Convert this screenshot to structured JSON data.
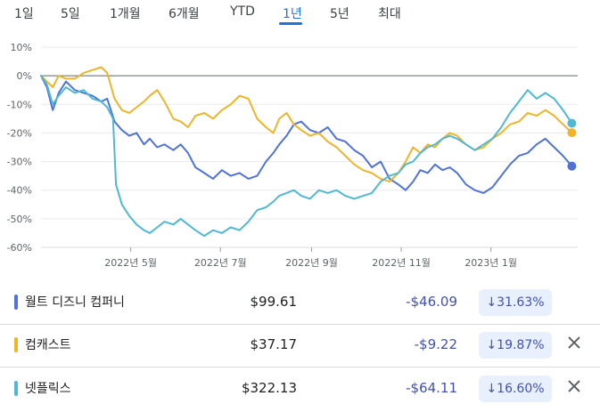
{
  "tabs": [
    {
      "label": "1일"
    },
    {
      "label": "5일"
    },
    {
      "label": "1개월"
    },
    {
      "label": "6개월"
    },
    {
      "label": "YTD"
    },
    {
      "label": "1년",
      "active": true
    },
    {
      "label": "5년"
    },
    {
      "label": "최대"
    }
  ],
  "chart_data": {
    "type": "line",
    "yticks": [
      "10%",
      "0%",
      "-10%",
      "-20%",
      "-30%",
      "-40%",
      "-50%",
      "-60%"
    ],
    "ylim": [
      -60,
      10
    ],
    "xticks": [
      {
        "label": "2022년 5월",
        "x": "2022-05-01"
      },
      {
        "label": "2022년 7월",
        "x": "2022-07-01"
      },
      {
        "label": "2022년 9월",
        "x": "2022-09-01"
      },
      {
        "label": "2022년 11월",
        "x": "2022-11-01"
      },
      {
        "label": "2023년 1월",
        "x": "2023-01-01"
      }
    ],
    "x_start": "2022-03-01",
    "x_end": "2023-03-01",
    "grid": true,
    "series": [
      {
        "name": "월트 디즈니 컴퍼니",
        "color": "#4f73d9",
        "points": [
          [
            "2022-03-01",
            0
          ],
          [
            "2022-03-05",
            -4
          ],
          [
            "2022-03-09",
            -12
          ],
          [
            "2022-03-13",
            -6
          ],
          [
            "2022-03-18",
            -2
          ],
          [
            "2022-03-24",
            -5
          ],
          [
            "2022-03-30",
            -6
          ],
          [
            "2022-04-05",
            -7
          ],
          [
            "2022-04-11",
            -9
          ],
          [
            "2022-04-15",
            -8
          ],
          [
            "2022-04-20",
            -16
          ],
          [
            "2022-04-25",
            -19
          ],
          [
            "2022-04-30",
            -21
          ],
          [
            "2022-05-05",
            -20
          ],
          [
            "2022-05-10",
            -24
          ],
          [
            "2022-05-14",
            -22
          ],
          [
            "2022-05-19",
            -25
          ],
          [
            "2022-05-24",
            -24
          ],
          [
            "2022-05-30",
            -26
          ],
          [
            "2022-06-04",
            -24
          ],
          [
            "2022-06-09",
            -27
          ],
          [
            "2022-06-14",
            -32
          ],
          [
            "2022-06-20",
            -34
          ],
          [
            "2022-06-26",
            -36
          ],
          [
            "2022-07-02",
            -33
          ],
          [
            "2022-07-08",
            -35
          ],
          [
            "2022-07-14",
            -34
          ],
          [
            "2022-07-20",
            -36
          ],
          [
            "2022-07-26",
            -35
          ],
          [
            "2022-08-01",
            -30
          ],
          [
            "2022-08-06",
            -27
          ],
          [
            "2022-08-10",
            -24
          ],
          [
            "2022-08-15",
            -21
          ],
          [
            "2022-08-20",
            -17
          ],
          [
            "2022-08-25",
            -16
          ],
          [
            "2022-08-31",
            -19
          ],
          [
            "2022-09-06",
            -20
          ],
          [
            "2022-09-12",
            -18
          ],
          [
            "2022-09-18",
            -22
          ],
          [
            "2022-09-24",
            -23
          ],
          [
            "2022-09-30",
            -26
          ],
          [
            "2022-10-06",
            -28
          ],
          [
            "2022-10-12",
            -32
          ],
          [
            "2022-10-18",
            -30
          ],
          [
            "2022-10-24",
            -36
          ],
          [
            "2022-10-30",
            -38
          ],
          [
            "2022-11-04",
            -40
          ],
          [
            "2022-11-09",
            -37
          ],
          [
            "2022-11-14",
            -33
          ],
          [
            "2022-11-19",
            -34
          ],
          [
            "2022-11-24",
            -31
          ],
          [
            "2022-11-29",
            -33
          ],
          [
            "2022-12-04",
            -32
          ],
          [
            "2022-12-09",
            -34
          ],
          [
            "2022-12-15",
            -38
          ],
          [
            "2022-12-21",
            -40
          ],
          [
            "2022-12-27",
            -41
          ],
          [
            "2023-01-02",
            -39
          ],
          [
            "2023-01-08",
            -35
          ],
          [
            "2023-01-14",
            -31
          ],
          [
            "2023-01-20",
            -28
          ],
          [
            "2023-01-26",
            -27
          ],
          [
            "2023-02-01",
            -24
          ],
          [
            "2023-02-07",
            -22
          ],
          [
            "2023-02-13",
            -25
          ],
          [
            "2023-02-19",
            -28
          ],
          [
            "2023-02-25",
            -31.6
          ]
        ]
      },
      {
        "name": "컴캐스트",
        "color": "#f0b429",
        "points": [
          [
            "2022-03-01",
            0
          ],
          [
            "2022-03-05",
            -2
          ],
          [
            "2022-03-09",
            -4
          ],
          [
            "2022-03-13",
            0
          ],
          [
            "2022-03-18",
            -1
          ],
          [
            "2022-03-24",
            -1
          ],
          [
            "2022-03-30",
            1
          ],
          [
            "2022-04-05",
            2
          ],
          [
            "2022-04-11",
            3
          ],
          [
            "2022-04-15",
            1
          ],
          [
            "2022-04-20",
            -8
          ],
          [
            "2022-04-25",
            -12
          ],
          [
            "2022-04-30",
            -13
          ],
          [
            "2022-05-05",
            -11
          ],
          [
            "2022-05-10",
            -9
          ],
          [
            "2022-05-14",
            -7
          ],
          [
            "2022-05-19",
            -5
          ],
          [
            "2022-05-24",
            -9
          ],
          [
            "2022-05-30",
            -15
          ],
          [
            "2022-06-04",
            -16
          ],
          [
            "2022-06-09",
            -18
          ],
          [
            "2022-06-14",
            -14
          ],
          [
            "2022-06-20",
            -13
          ],
          [
            "2022-06-26",
            -15
          ],
          [
            "2022-07-02",
            -12
          ],
          [
            "2022-07-08",
            -10
          ],
          [
            "2022-07-14",
            -7
          ],
          [
            "2022-07-20",
            -8
          ],
          [
            "2022-07-26",
            -15
          ],
          [
            "2022-08-01",
            -18
          ],
          [
            "2022-08-06",
            -20
          ],
          [
            "2022-08-10",
            -15
          ],
          [
            "2022-08-15",
            -13
          ],
          [
            "2022-08-20",
            -17
          ],
          [
            "2022-08-25",
            -19
          ],
          [
            "2022-08-31",
            -21
          ],
          [
            "2022-09-06",
            -20
          ],
          [
            "2022-09-12",
            -23
          ],
          [
            "2022-09-18",
            -25
          ],
          [
            "2022-09-24",
            -28
          ],
          [
            "2022-09-30",
            -31
          ],
          [
            "2022-10-06",
            -33
          ],
          [
            "2022-10-12",
            -34
          ],
          [
            "2022-10-18",
            -36
          ],
          [
            "2022-10-24",
            -37
          ],
          [
            "2022-10-30",
            -34
          ],
          [
            "2022-11-04",
            -30
          ],
          [
            "2022-11-09",
            -25
          ],
          [
            "2022-11-14",
            -27
          ],
          [
            "2022-11-19",
            -24
          ],
          [
            "2022-11-24",
            -25
          ],
          [
            "2022-11-29",
            -22
          ],
          [
            "2022-12-04",
            -20
          ],
          [
            "2022-12-09",
            -21
          ],
          [
            "2022-12-15",
            -24
          ],
          [
            "2022-12-21",
            -26
          ],
          [
            "2022-12-27",
            -25
          ],
          [
            "2023-01-02",
            -22
          ],
          [
            "2023-01-08",
            -20
          ],
          [
            "2023-01-14",
            -17
          ],
          [
            "2023-01-20",
            -16
          ],
          [
            "2023-01-26",
            -13
          ],
          [
            "2023-02-01",
            -14
          ],
          [
            "2023-02-07",
            -12
          ],
          [
            "2023-02-13",
            -14
          ],
          [
            "2023-02-19",
            -17
          ],
          [
            "2023-02-25",
            -19.9
          ]
        ]
      },
      {
        "name": "넷플릭스",
        "color": "#4fb8d4",
        "points": [
          [
            "2022-03-01",
            0
          ],
          [
            "2022-03-05",
            -3
          ],
          [
            "2022-03-09",
            -10
          ],
          [
            "2022-03-13",
            -7
          ],
          [
            "2022-03-18",
            -4
          ],
          [
            "2022-03-24",
            -6
          ],
          [
            "2022-03-30",
            -5
          ],
          [
            "2022-04-05",
            -8
          ],
          [
            "2022-04-11",
            -9
          ],
          [
            "2022-04-15",
            -11
          ],
          [
            "2022-04-19",
            -15
          ],
          [
            "2022-04-21",
            -38
          ],
          [
            "2022-04-25",
            -45
          ],
          [
            "2022-04-30",
            -49
          ],
          [
            "2022-05-05",
            -52
          ],
          [
            "2022-05-10",
            -54
          ],
          [
            "2022-05-14",
            -55
          ],
          [
            "2022-05-19",
            -53
          ],
          [
            "2022-05-24",
            -51
          ],
          [
            "2022-05-30",
            -52
          ],
          [
            "2022-06-04",
            -50
          ],
          [
            "2022-06-09",
            -52
          ],
          [
            "2022-06-14",
            -54
          ],
          [
            "2022-06-20",
            -56
          ],
          [
            "2022-06-26",
            -54
          ],
          [
            "2022-07-02",
            -55
          ],
          [
            "2022-07-08",
            -53
          ],
          [
            "2022-07-14",
            -54
          ],
          [
            "2022-07-20",
            -51
          ],
          [
            "2022-07-26",
            -47
          ],
          [
            "2022-08-01",
            -46
          ],
          [
            "2022-08-06",
            -44
          ],
          [
            "2022-08-10",
            -42
          ],
          [
            "2022-08-15",
            -41
          ],
          [
            "2022-08-20",
            -40
          ],
          [
            "2022-08-25",
            -42
          ],
          [
            "2022-08-31",
            -43
          ],
          [
            "2022-09-06",
            -40
          ],
          [
            "2022-09-12",
            -41
          ],
          [
            "2022-09-18",
            -40
          ],
          [
            "2022-09-24",
            -42
          ],
          [
            "2022-09-30",
            -43
          ],
          [
            "2022-10-06",
            -42
          ],
          [
            "2022-10-12",
            -41
          ],
          [
            "2022-10-18",
            -37
          ],
          [
            "2022-10-24",
            -35
          ],
          [
            "2022-10-30",
            -34
          ],
          [
            "2022-11-04",
            -31
          ],
          [
            "2022-11-09",
            -30
          ],
          [
            "2022-11-14",
            -27
          ],
          [
            "2022-11-19",
            -25
          ],
          [
            "2022-11-24",
            -24
          ],
          [
            "2022-11-29",
            -22
          ],
          [
            "2022-12-04",
            -21
          ],
          [
            "2022-12-09",
            -22
          ],
          [
            "2022-12-15",
            -24
          ],
          [
            "2022-12-21",
            -26
          ],
          [
            "2022-12-27",
            -24
          ],
          [
            "2023-01-02",
            -22
          ],
          [
            "2023-01-08",
            -18
          ],
          [
            "2023-01-14",
            -13
          ],
          [
            "2023-01-20",
            -9
          ],
          [
            "2023-01-26",
            -5
          ],
          [
            "2023-02-01",
            -8
          ],
          [
            "2023-02-07",
            -6
          ],
          [
            "2023-02-13",
            -8
          ],
          [
            "2023-02-19",
            -12
          ],
          [
            "2023-02-25",
            -16.6
          ]
        ]
      }
    ]
  },
  "rows": [
    {
      "name": "월트 디즈니 컴퍼니",
      "color": "#4f73d9",
      "price": "$99.61",
      "change": "-$46.09",
      "pct": "↓31.63%",
      "closable": false
    },
    {
      "name": "컴캐스트",
      "color": "#f0b429",
      "price": "$37.17",
      "change": "-$9.22",
      "pct": "↓19.87%",
      "closable": true
    },
    {
      "name": "넷플릭스",
      "color": "#4fb8d4",
      "price": "$322.13",
      "change": "-$64.11",
      "pct": "↓16.60%",
      "closable": true
    }
  ]
}
